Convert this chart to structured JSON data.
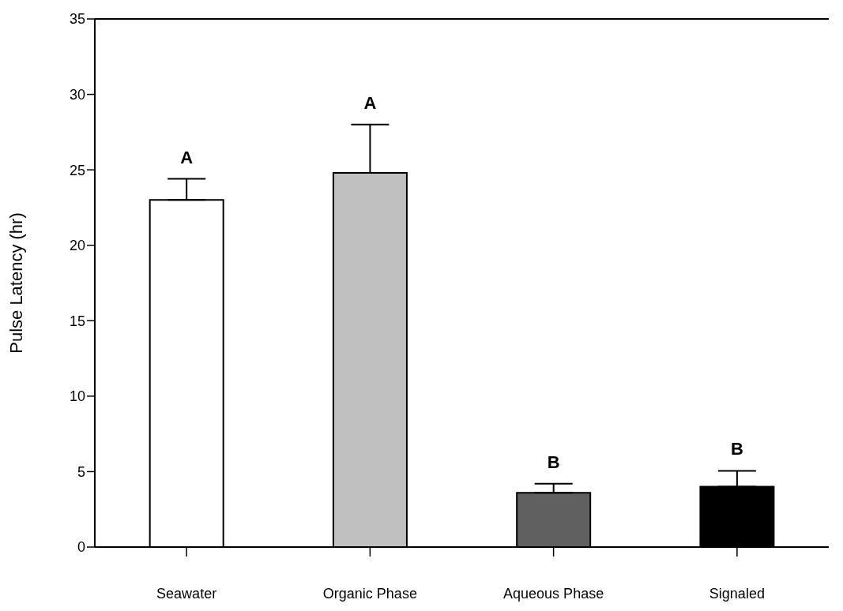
{
  "chart_data": {
    "type": "bar",
    "ylabel": "Pulse Latency (hr)",
    "categories": [
      "Seawater",
      "Organic Phase",
      "Aqueous Phase",
      "Signaled"
    ],
    "values": [
      23,
      24.8,
      3.6,
      4.0
    ],
    "errors": [
      [
        23,
        24.4
      ],
      [
        24.8,
        28.0
      ],
      [
        3.6,
        4.2
      ],
      [
        4.0,
        5.05
      ]
    ],
    "colors": [
      "#ffffff",
      "#c0c0c0",
      "#606060",
      "#000000"
    ],
    "ylim": [
      0,
      35
    ],
    "yticks": [
      0,
      5,
      10,
      15,
      20,
      25,
      30,
      35
    ],
    "grid": false,
    "legend": false,
    "annotations": [
      {
        "text": "A",
        "x": "Seawater",
        "y": 24.4
      },
      {
        "text": "A",
        "x": "Organic Phase",
        "y": 28.0
      },
      {
        "text": "B",
        "x": "Aqueous Phase",
        "y": 4.2
      },
      {
        "text": "B",
        "x": "Signaled",
        "y": 5.05
      }
    ]
  }
}
